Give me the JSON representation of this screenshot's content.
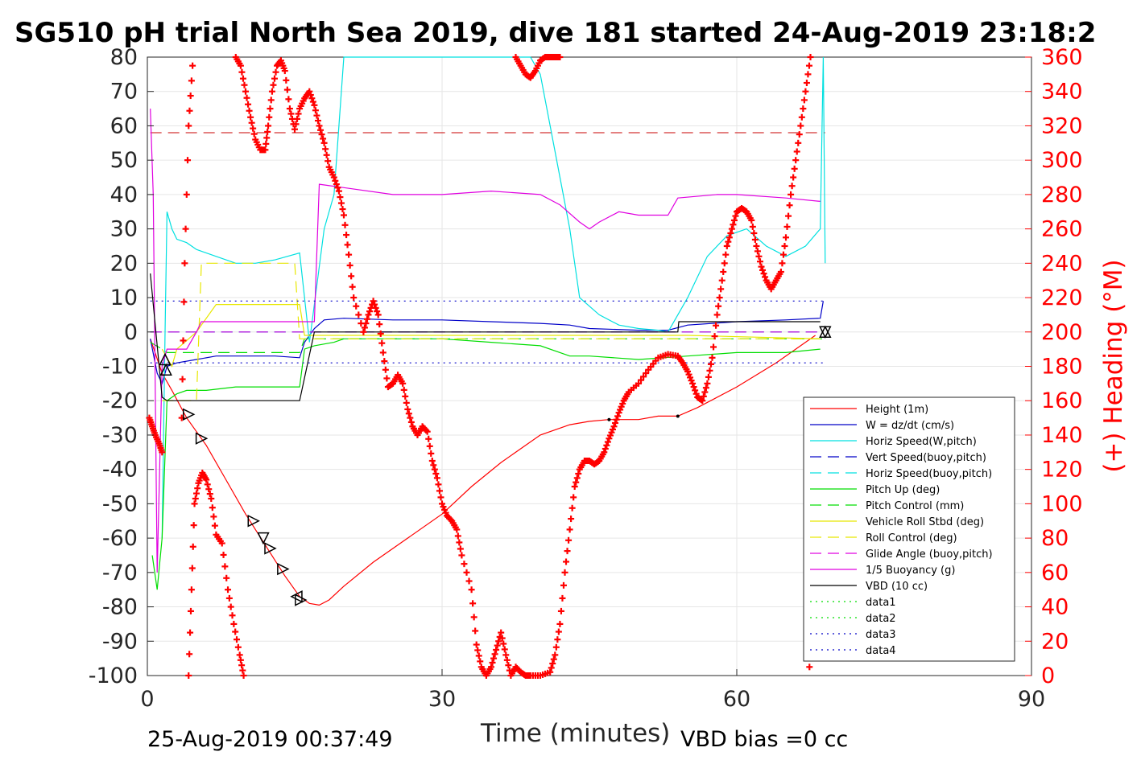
{
  "chart_data": {
    "type": "line",
    "title": "SG510 pH trial North Sea 2019, dive 181 started 24-Aug-2019 23:18:2",
    "xlabel": "Time (minutes)",
    "ylabel_left": "",
    "ylabel_right": "(+) Heading (°M)",
    "xlim": [
      0,
      90
    ],
    "ylim_left": [
      -100,
      80
    ],
    "ylim_right": [
      0,
      360
    ],
    "x_ticks": [
      0,
      30,
      60,
      90
    ],
    "y_ticks_left": [
      -100,
      -90,
      -80,
      -70,
      -60,
      -50,
      -40,
      -30,
      -20,
      -10,
      0,
      10,
      20,
      30,
      40,
      50,
      60,
      70,
      80
    ],
    "y_ticks_right": [
      0,
      20,
      40,
      60,
      80,
      100,
      120,
      140,
      160,
      180,
      200,
      220,
      240,
      260,
      280,
      300,
      320,
      340,
      360
    ],
    "grid": true,
    "legend_position": "lower-right",
    "footer_left": "25-Aug-2019 00:37:49",
    "footer_right": "VBD bias =0 cc",
    "series": [
      {
        "name": "Height (1m)",
        "color": "#ff0000",
        "style": "solid",
        "x": [
          0.3,
          1.5,
          2.5,
          4,
          6,
          8,
          10,
          12,
          14,
          15.5,
          16.5,
          17.5,
          18.5,
          20,
          23,
          26,
          30,
          33,
          36,
          40,
          43,
          45,
          47,
          50,
          52,
          54,
          56,
          60,
          64,
          66,
          68
        ],
        "y": [
          -2,
          -12,
          -17,
          -25,
          -33,
          -43,
          -53,
          -62,
          -71,
          -77,
          -79,
          -79.5,
          -78,
          -74,
          -67,
          -61,
          -53,
          -45,
          -38,
          -30,
          -27,
          -26,
          -25.5,
          -25.5,
          -24.5,
          -24.5,
          -22,
          -16,
          -9,
          -5,
          -1
        ]
      },
      {
        "name": "W = dz/dt (cm/s)",
        "color": "#0000c8",
        "style": "solid",
        "x": [
          0.3,
          1,
          1.5,
          2,
          3,
          5,
          7,
          10,
          13,
          15.5,
          16,
          17,
          18,
          20,
          25,
          30,
          35,
          40,
          43,
          45,
          50,
          53,
          55,
          60,
          65,
          68.5,
          68.8
        ],
        "y": [
          -2,
          -12,
          -15,
          -10,
          -9,
          -8,
          -7,
          -7,
          -7,
          -7.5,
          -3,
          1,
          3.5,
          4,
          3.5,
          3.5,
          3,
          2.5,
          2,
          1,
          0.5,
          0.5,
          2,
          3,
          3.5,
          4,
          9
        ]
      },
      {
        "name": "Horiz Speed(W,pitch)",
        "color": "#00e0e0",
        "style": "solid",
        "x": [
          1.5,
          1.8,
          2,
          2.5,
          3,
          4,
          5,
          7,
          9,
          11,
          13,
          15.5,
          16.5,
          18,
          19,
          20,
          22,
          23,
          25,
          28,
          31,
          32,
          34,
          36,
          38,
          39,
          40,
          41,
          42,
          43,
          44,
          46,
          48,
          50,
          52,
          53,
          55,
          57,
          59,
          61,
          63,
          65,
          67,
          68.5,
          68.8,
          69
        ],
        "y": [
          -60,
          0,
          35,
          30,
          27,
          26,
          24,
          22,
          20,
          20,
          21,
          23,
          -3,
          30,
          40,
          80,
          80,
          80,
          80,
          80,
          80,
          80,
          80,
          80,
          80,
          80,
          75,
          60,
          45,
          30,
          10,
          5,
          2,
          1,
          0.5,
          0,
          10,
          22,
          28,
          30,
          25,
          22,
          25,
          30,
          80,
          20
        ]
      },
      {
        "name": "Vert Speed(buoy,pitch)",
        "color": "#0000c8",
        "style": "dashed",
        "x": [
          0.3,
          68.8
        ],
        "y": [
          0,
          0
        ]
      },
      {
        "name": "Horiz Speed(buoy,pitch)",
        "color": "#00e0e0",
        "style": "dashed",
        "x": [
          0.3,
          68.8
        ],
        "y": [
          0,
          0
        ]
      },
      {
        "name": "Pitch Up (deg)",
        "color": "#00dd00",
        "style": "solid",
        "x": [
          0.5,
          1,
          1.5,
          2,
          3,
          4,
          6,
          9,
          12,
          15.5,
          16,
          17,
          19,
          20,
          25,
          30,
          35,
          40,
          43,
          45,
          50,
          55,
          60,
          65,
          68.5
        ],
        "y": [
          -65,
          -75,
          -60,
          -20,
          -18,
          -17,
          -17,
          -16,
          -16,
          -16,
          -5,
          -4,
          -3,
          -2,
          -2,
          -2,
          -3,
          -4,
          -7,
          -7,
          -8,
          -7,
          -6,
          -6,
          -5
        ]
      },
      {
        "name": "Pitch Control (mm)",
        "color": "#00dd00",
        "style": "dashed",
        "x": [
          0.3,
          1.5,
          2,
          10,
          15.5,
          16,
          68.8
        ],
        "y": [
          -3,
          -5,
          -6,
          -6,
          -6,
          -2,
          -2
        ]
      },
      {
        "name": "Vehicle Roll Stbd (deg)",
        "color": "#e8e800",
        "style": "solid",
        "x": [
          1.5,
          2.5,
          3,
          5,
          7,
          10,
          13,
          15.5,
          16,
          25,
          40,
          55,
          68.5
        ],
        "y": [
          -5,
          -10,
          -5,
          0,
          8,
          8,
          8,
          8,
          -1,
          -1,
          -1,
          -1,
          -2
        ]
      },
      {
        "name": "Roll Control (deg)",
        "color": "#e8e800",
        "style": "dashed",
        "x": [
          1.5,
          5,
          5.5,
          15,
          15.5,
          16,
          68.8
        ],
        "y": [
          -20,
          -20,
          20,
          20,
          -2,
          -2,
          -2
        ]
      },
      {
        "name": "Glide Angle (buoy,pitch)",
        "color": "#e000e0",
        "style": "dashed",
        "x": [
          0.3,
          68.8
        ],
        "y": [
          0,
          0
        ]
      },
      {
        "name": "1/5 Buoyancy (g)",
        "color": "#e000e0",
        "style": "solid",
        "x": [
          0.3,
          0.6,
          1,
          1.5,
          2,
          3,
          4,
          5,
          5.5,
          10,
          15.5,
          17,
          17.5,
          20,
          25,
          30,
          35,
          40,
          42,
          44,
          45,
          46,
          48,
          50,
          53,
          54,
          58,
          60,
          65,
          68.5
        ],
        "y": [
          65,
          40,
          -70,
          -10,
          -5,
          -5,
          -5,
          0,
          3,
          3,
          3,
          3,
          43,
          42,
          40,
          40,
          41,
          40,
          37,
          32,
          30,
          32,
          35,
          34,
          34,
          39,
          40,
          40,
          39,
          38
        ]
      },
      {
        "name": "VBD (10 cc)",
        "color": "#000000",
        "style": "solid",
        "x": [
          0.3,
          1.5,
          2,
          10,
          15.5,
          17,
          54,
          54.1,
          68.5
        ],
        "y": [
          17,
          -19,
          -20,
          -20,
          -20,
          0,
          0,
          3,
          3
        ]
      },
      {
        "name": "data1",
        "color": "#00dd00",
        "style": "dotted",
        "x": [],
        "y": []
      },
      {
        "name": "data2",
        "color": "#00dd00",
        "style": "dotted",
        "x": [],
        "y": []
      },
      {
        "name": "data3",
        "color": "#0000c8",
        "style": "dotted",
        "x": [
          0.3,
          68.8
        ],
        "y": [
          9,
          9
        ]
      },
      {
        "name": "data4",
        "color": "#0000c8",
        "style": "dotted",
        "x": [
          0.3,
          68.8
        ],
        "y": [
          -9,
          -9
        ]
      }
    ],
    "reference_line": {
      "color": "#c80000",
      "style": "dashed",
      "x": [
        0.3,
        69
      ],
      "y": 58
    },
    "heading_segments": [
      {
        "x": [
          0.2,
          0.5,
          0.8,
          1.2,
          1.5
        ],
        "h": [
          150,
          145,
          140,
          135,
          130
        ]
      },
      {
        "x": [
          3.5,
          3.8,
          4.2,
          4.6
        ],
        "h": [
          150,
          240,
          320,
          355
        ]
      },
      {
        "x": [
          4.2,
          4.5,
          4.8,
          5.2,
          5.6,
          6,
          6.5,
          7,
          7.6,
          8.2,
          8.8,
          9.4,
          9.8
        ],
        "h": [
          0,
          50,
          100,
          112,
          118,
          114,
          103,
          82,
          77,
          50,
          30,
          12,
          0
        ]
      },
      {
        "x": [
          9,
          9.5,
          10,
          10.5,
          11,
          11.5,
          12,
          12.3,
          12.7,
          13.2,
          13.6,
          14,
          14.5,
          15,
          15.5,
          16,
          16.5,
          17,
          17.5,
          18,
          18.5,
          19,
          19.5,
          20,
          20.5,
          21,
          22,
          22.5,
          23,
          23.5,
          24,
          24.5,
          25,
          25.5,
          26,
          26.5,
          27,
          27.5,
          28,
          28.5,
          29,
          29.5,
          30,
          30.5,
          31,
          31.5,
          32,
          33,
          33.5,
          34,
          34.5,
          35,
          35.5,
          36,
          36.5,
          37,
          37.5,
          38,
          38.5,
          39,
          40,
          41,
          41.5,
          42,
          42.5,
          43,
          43.5,
          44,
          44.5,
          45,
          45.5,
          46,
          46.5,
          47,
          47.5,
          48,
          48.5,
          49,
          50,
          51,
          52,
          53,
          54,
          54.5,
          55,
          55.5,
          56,
          56.5,
          57,
          57.5,
          58,
          58.5,
          59,
          59.5,
          60,
          60.5,
          61,
          61.5,
          62,
          62.5,
          63,
          63.5,
          64,
          64.5,
          65,
          65.5,
          66,
          66.5,
          67,
          67.5
        ],
        "h": [
          360,
          355,
          340,
          325,
          312,
          306,
          306,
          320,
          340,
          355,
          358,
          352,
          330,
          318,
          330,
          336,
          340,
          332,
          320,
          310,
          296,
          290,
          282,
          268,
          245,
          220,
          200,
          210,
          218,
          210,
          188,
          168,
          170,
          175,
          170,
          155,
          145,
          140,
          145,
          142,
          125,
          115,
          100,
          93,
          90,
          85,
          70,
          50,
          18,
          5,
          0,
          5,
          15,
          25,
          12,
          0,
          5,
          2,
          0,
          0,
          0,
          2,
          12,
          30,
          60,
          85,
          110,
          120,
          125,
          125,
          123,
          125,
          130,
          138,
          145,
          153,
          160,
          165,
          170,
          178,
          185,
          187,
          186,
          182,
          177,
          170,
          162,
          160,
          170,
          185,
          210,
          230,
          250,
          260,
          270,
          272,
          270,
          265,
          250,
          238,
          230,
          225,
          230,
          235,
          255,
          280,
          300,
          320,
          340,
          360
        ]
      },
      {
        "x": [
          37.5,
          38,
          38.5,
          39,
          39.5,
          40,
          40.5,
          41,
          41.5,
          42
        ],
        "h": [
          360,
          355,
          350,
          348,
          352,
          358,
          360,
          360,
          360,
          360
        ]
      },
      {
        "x": [
          67.4
        ],
        "h": [
          5
        ]
      }
    ],
    "depth_markers_triangle": [
      {
        "x": 1.8,
        "y": -8,
        "dir": "up"
      },
      {
        "x": 1.9,
        "y": -11,
        "dir": "up"
      },
      {
        "x": 4.2,
        "y": -24,
        "dir": "right"
      },
      {
        "x": 5.5,
        "y": -31,
        "dir": "right"
      },
      {
        "x": 10.8,
        "y": -55,
        "dir": "right"
      },
      {
        "x": 11.8,
        "y": -60,
        "dir": "down"
      },
      {
        "x": 12.5,
        "y": -63,
        "dir": "right"
      },
      {
        "x": 13.8,
        "y": -69,
        "dir": "right"
      },
      {
        "x": 15.2,
        "y": -77,
        "dir": "left"
      },
      {
        "x": 15.6,
        "y": -78,
        "dir": "right"
      },
      {
        "x": 69,
        "y": 0,
        "dir": "down"
      },
      {
        "x": 69,
        "y": 0,
        "dir": "up"
      }
    ],
    "depth_markers_dot": [
      {
        "x": 47,
        "y": -25.5
      },
      {
        "x": 54,
        "y": -24.5
      }
    ]
  }
}
